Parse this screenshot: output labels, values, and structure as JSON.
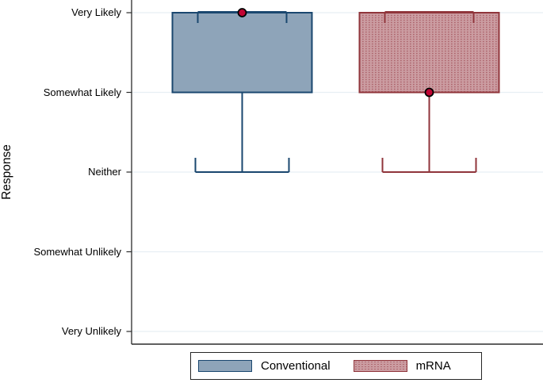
{
  "chart_data": {
    "type": "box",
    "title": "",
    "xlabel": "",
    "ylabel": "Response",
    "y_ticks": [
      {
        "value": 5,
        "label": "Very Likely"
      },
      {
        "value": 4,
        "label": "Somewhat Likely"
      },
      {
        "value": 3,
        "label": "Neither"
      },
      {
        "value": 2,
        "label": "Somewhat Unlikely"
      },
      {
        "value": 1,
        "label": "Very Unlikely"
      }
    ],
    "grid": true,
    "legend_position": "bottom",
    "series": [
      {
        "name": "Conventional",
        "q1": 4,
        "median": 5,
        "q3": 5,
        "whisker_low": 3,
        "whisker_high": 5,
        "mean": 5,
        "fill_color": "#8EA4B9",
        "border_color": "#1A476F",
        "fill_pattern": "solid"
      },
      {
        "name": "mRNA",
        "q1": 4,
        "median": 4,
        "q3": 5,
        "whisker_low": 3,
        "whisker_high": 5,
        "mean": 4,
        "fill_color": "#CB9CA1",
        "border_color": "#90353B",
        "fill_pattern": "dots",
        "pattern_dot_color": "#A4545C"
      }
    ],
    "mean_marker": {
      "shape": "circle",
      "fill": "#C10534",
      "stroke": "#000000"
    }
  },
  "style": {
    "gridline_color": "#E7EFF4",
    "axis_color": "#2B2B2B",
    "background": "#FFFFFF"
  }
}
